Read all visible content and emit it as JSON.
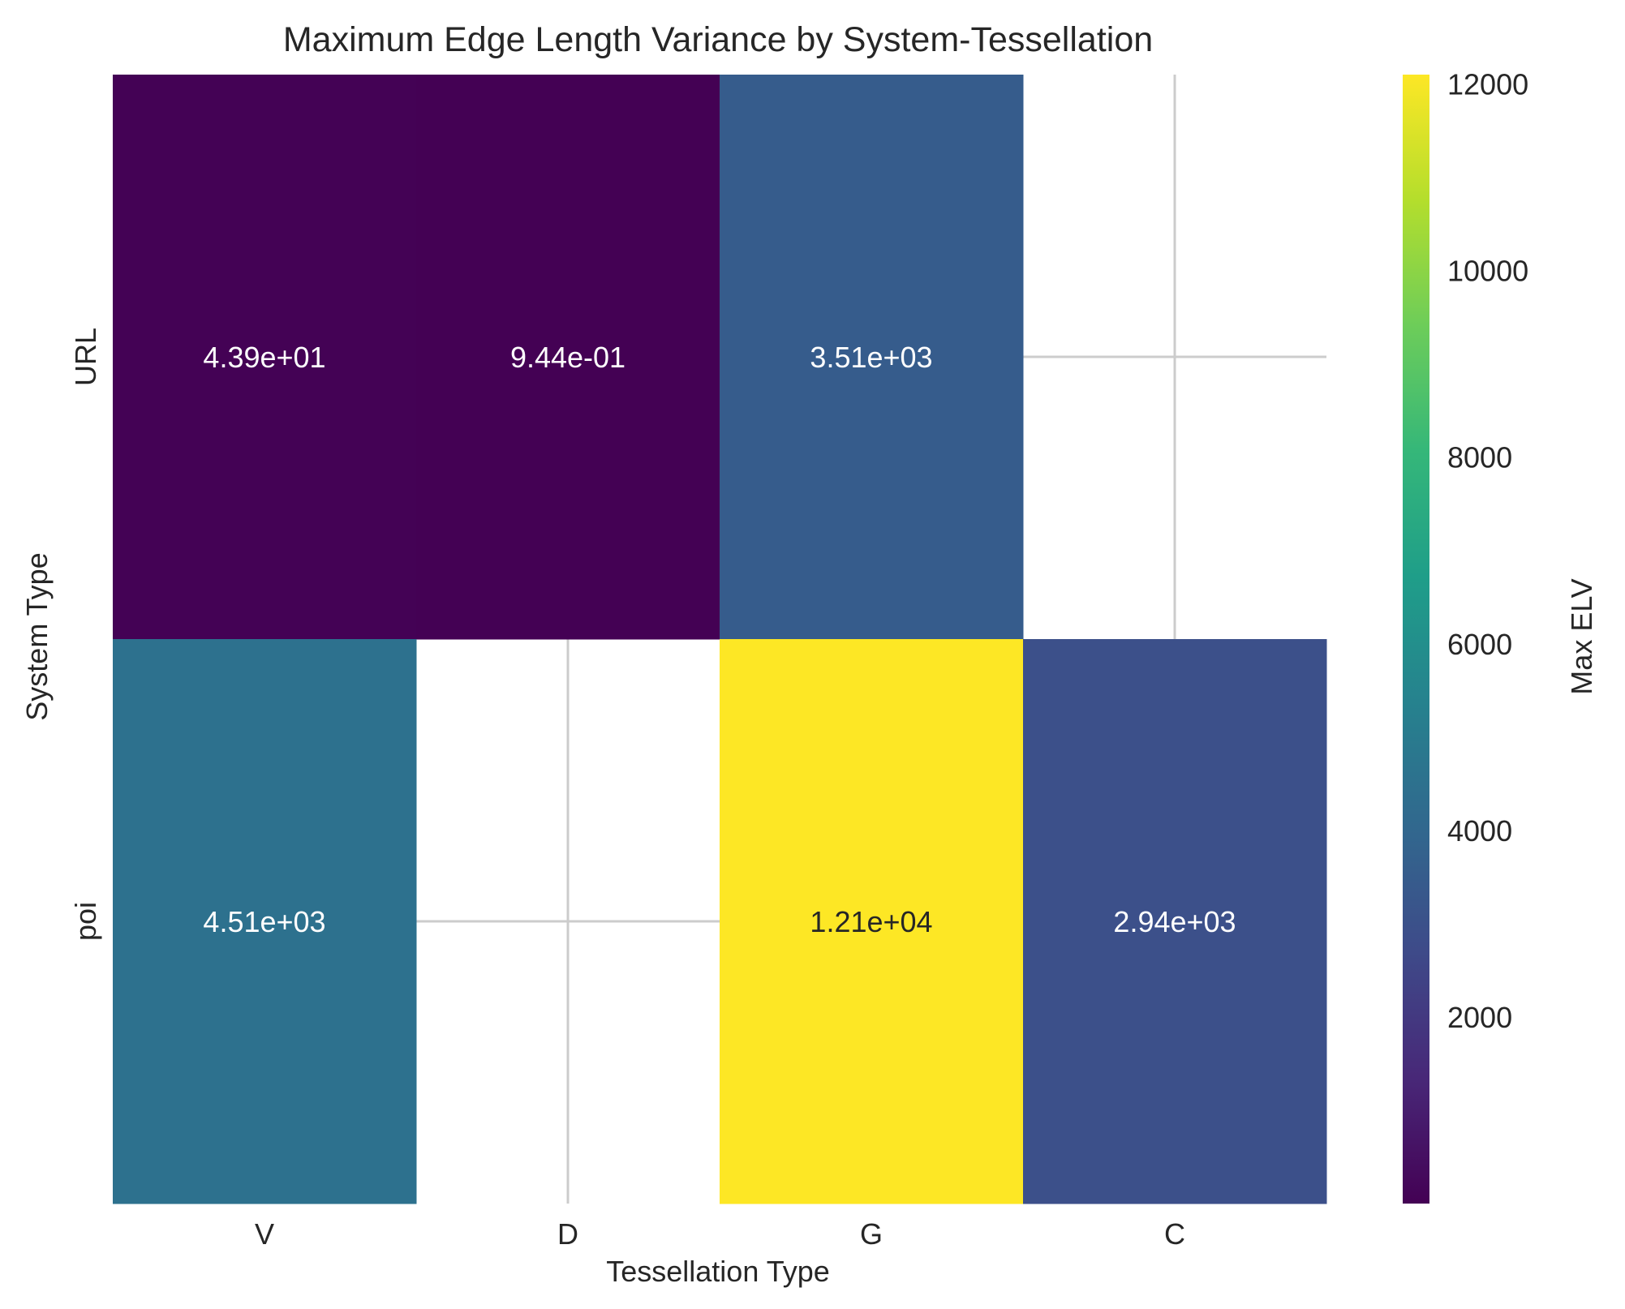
{
  "chart_data": {
    "type": "heatmap",
    "title": "Maximum Edge Length Variance by System-Tessellation",
    "xlabel": "Tessellation Type",
    "ylabel": "System Type",
    "x_categories": [
      "V",
      "D",
      "G",
      "C"
    ],
    "y_categories": [
      "URL",
      "poi"
    ],
    "values": [
      [
        43.9,
        0.944,
        3510,
        null
      ],
      [
        4510,
        null,
        12100,
        2940
      ]
    ],
    "cell_labels": [
      [
        "4.39e+01",
        "9.44e-01",
        "3.51e+03",
        ""
      ],
      [
        "4.51e+03",
        "",
        "1.21e+04",
        "2.94e+03"
      ]
    ],
    "colormap": "viridis",
    "color_range": [
      0.944,
      12100
    ],
    "colorbar": {
      "label": "Max ELV",
      "ticks": [
        2000,
        4000,
        6000,
        8000,
        10000,
        12000
      ]
    },
    "grid": true
  }
}
